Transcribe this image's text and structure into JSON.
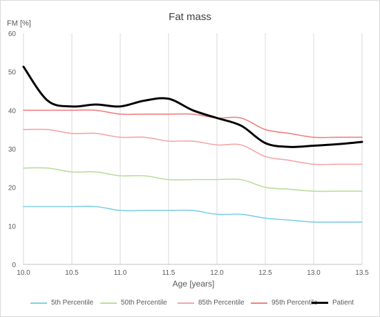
{
  "chart_data": {
    "type": "line",
    "title": "Fat mass",
    "ylabel": "FM [%]",
    "xlabel": "Age [years]",
    "xlim": [
      10.0,
      13.5
    ],
    "ylim": [
      0,
      60
    ],
    "xticks": [
      "10.0",
      "10.5",
      "11.0",
      "11.5",
      "12.0",
      "12.5",
      "13.0",
      "13.5"
    ],
    "yticks": [
      "0",
      "10",
      "20",
      "30",
      "40",
      "50",
      "60"
    ],
    "grid": "vertical",
    "legend_position": "bottom",
    "series": [
      {
        "name": "5th Percentile",
        "color": "#7fcfe3",
        "x": [
          10.0,
          10.25,
          10.5,
          10.75,
          11.0,
          11.25,
          11.5,
          11.75,
          12.0,
          12.25,
          12.5,
          12.75,
          13.0,
          13.25,
          13.5
        ],
        "y": [
          15,
          15,
          15,
          15,
          14,
          14,
          14,
          14,
          13,
          13,
          12,
          11.5,
          11,
          11,
          11
        ]
      },
      {
        "name": "50th Percentile",
        "color": "#b9dd9b",
        "x": [
          10.0,
          10.25,
          10.5,
          10.75,
          11.0,
          11.25,
          11.5,
          11.75,
          12.0,
          12.25,
          12.5,
          12.75,
          13.0,
          13.25,
          13.5
        ],
        "y": [
          25,
          25,
          24,
          24,
          23,
          23,
          22,
          22,
          22,
          22,
          20,
          19.5,
          19,
          19,
          19
        ]
      },
      {
        "name": "85th Percentile",
        "color": "#f4a6a6",
        "x": [
          10.0,
          10.25,
          10.5,
          10.75,
          11.0,
          11.25,
          11.5,
          11.75,
          12.0,
          12.25,
          12.5,
          12.75,
          13.0,
          13.25,
          13.5
        ],
        "y": [
          35,
          35,
          34,
          34,
          33,
          33,
          32,
          32,
          31,
          31,
          28,
          27,
          26,
          26,
          26
        ]
      },
      {
        "name": "95th Percentile",
        "color": "#ef7f7f",
        "x": [
          10.0,
          10.25,
          10.5,
          10.75,
          11.0,
          11.25,
          11.5,
          11.75,
          12.0,
          12.25,
          12.5,
          12.75,
          13.0,
          13.25,
          13.5
        ],
        "y": [
          40,
          40,
          40,
          40,
          39,
          39,
          39,
          39,
          38,
          38,
          35,
          34,
          33,
          33,
          33
        ]
      },
      {
        "name": "Patient",
        "color": "#000000",
        "x": [
          10.0,
          10.25,
          10.5,
          10.75,
          11.0,
          11.25,
          11.5,
          11.75,
          12.0,
          12.25,
          12.5,
          12.75,
          13.0,
          13.25,
          13.5
        ],
        "y": [
          51.3,
          42.5,
          41.0,
          41.5,
          41.0,
          42.5,
          43.0,
          40.0,
          38.0,
          36.0,
          31.5,
          30.5,
          30.8,
          31.2,
          31.8
        ]
      }
    ]
  }
}
